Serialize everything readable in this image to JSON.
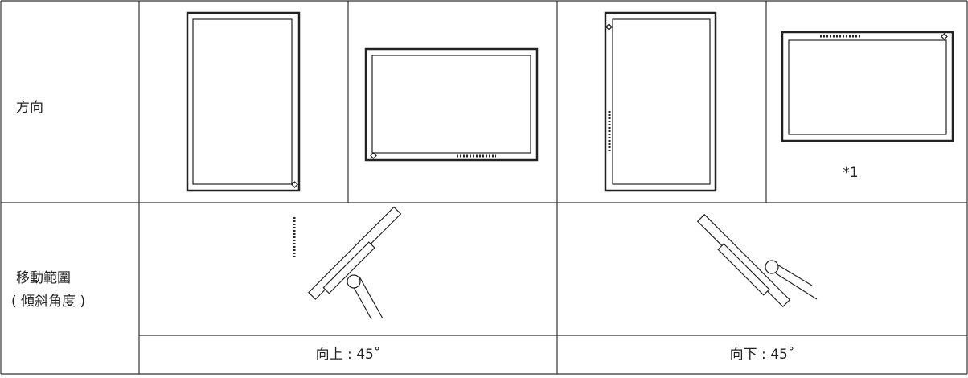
{
  "orientation": {
    "label": "方向",
    "note": "*1"
  },
  "tilt": {
    "label": [
      "移動範圍",
      "( 傾斜角度 )"
    ],
    "up": "向上 : 45˚",
    "down": "向下 : 45˚"
  }
}
